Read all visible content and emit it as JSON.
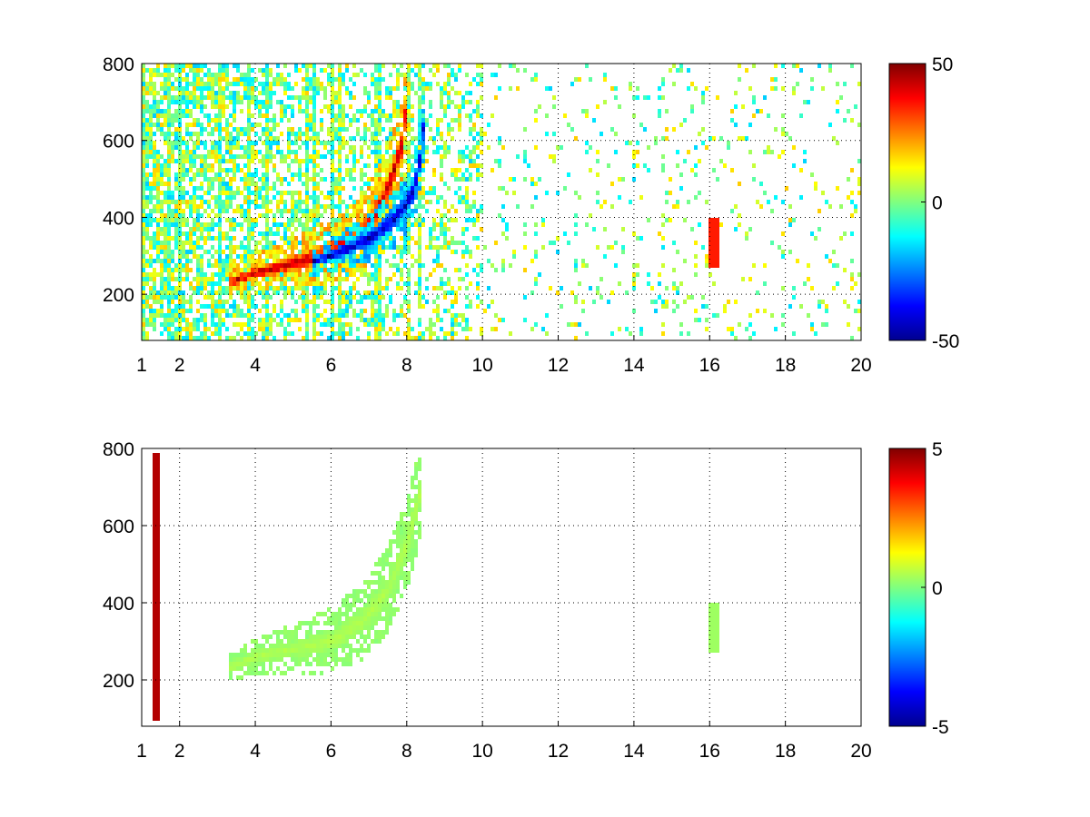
{
  "chart_data": [
    {
      "type": "heatmap",
      "title": "",
      "xlabel": "",
      "ylabel": "",
      "xlim": [
        1,
        20
      ],
      "ylim": [
        80,
        800
      ],
      "xticks": [
        1,
        2,
        4,
        6,
        8,
        10,
        12,
        14,
        16,
        18,
        20
      ],
      "yticks": [
        200,
        400,
        600,
        800
      ],
      "grid": true,
      "colormap": "jet",
      "clim": [
        -50,
        50
      ],
      "colorbar_ticks": [
        -50,
        0,
        50
      ],
      "features": [
        {
          "name": "positive ridge",
          "x": [
            3.3,
            4.0,
            5.0,
            6.0,
            6.6,
            7.0,
            7.3,
            7.6,
            7.9,
            8.0
          ],
          "y": [
            230,
            255,
            280,
            310,
            340,
            380,
            430,
            500,
            600,
            700
          ],
          "value": 45
        },
        {
          "name": "negative ridge",
          "x": [
            5.5,
            6.0,
            6.5,
            7.0,
            7.5,
            7.9,
            8.2,
            8.35,
            8.45
          ],
          "y": [
            285,
            300,
            320,
            345,
            380,
            420,
            470,
            550,
            640
          ],
          "value": -45
        },
        {
          "name": "vertical streak",
          "x": [
            16.1,
            16.1
          ],
          "y": [
            270,
            400
          ],
          "value": 35
        }
      ]
    },
    {
      "type": "heatmap",
      "title": "",
      "xlabel": "",
      "ylabel": "",
      "xlim": [
        1,
        20
      ],
      "ylim": [
        80,
        800
      ],
      "xticks": [
        1,
        2,
        4,
        6,
        8,
        10,
        12,
        14,
        16,
        18,
        20
      ],
      "yticks": [
        200,
        400,
        600,
        800
      ],
      "grid": true,
      "colormap": "jet",
      "clim": [
        -5,
        5
      ],
      "colorbar_ticks": [
        -5,
        0,
        5
      ],
      "features": [
        {
          "name": "curved band",
          "x": [
            3.3,
            4.0,
            5.0,
            6.0,
            6.8,
            7.5,
            8.0,
            8.4
          ],
          "y": [
            230,
            260,
            280,
            300,
            350,
            430,
            550,
            700
          ],
          "value": 0.5
        },
        {
          "name": "vertical streak",
          "x": [
            16.1,
            16.1
          ],
          "y": [
            270,
            400
          ],
          "value": 0.3
        },
        {
          "name": "left edge streak",
          "x": [
            1.4,
            1.4
          ],
          "y": [
            100,
            790
          ],
          "value": 4.5
        }
      ]
    }
  ]
}
